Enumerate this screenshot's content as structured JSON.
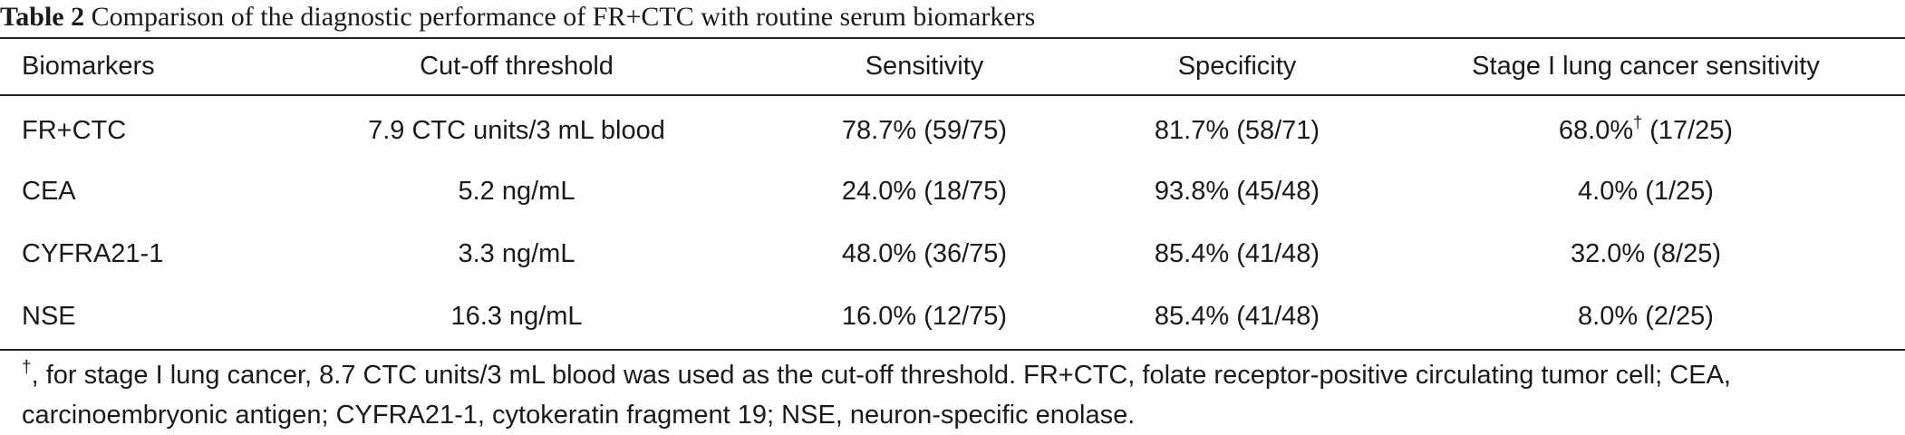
{
  "caption": {
    "label": "Table 2",
    "text": " Comparison of the diagnostic performance of FR+CTC with routine serum biomarkers"
  },
  "table": {
    "headers": [
      "Biomarkers",
      "Cut-off threshold",
      "Sensitivity",
      "Specificity",
      "Stage I lung cancer sensitivity"
    ],
    "rows": [
      {
        "biomarker": "FR+CTC",
        "cutoff": "7.9 CTC units/3 mL blood",
        "sensitivity": "78.7% (59/75)",
        "specificity": "81.7% (58/71)",
        "stage1_value": "68.0%",
        "stage1_mark": "†",
        "stage1_count": " (17/25)"
      },
      {
        "biomarker": "CEA",
        "cutoff": "5.2 ng/mL",
        "sensitivity": "24.0% (18/75)",
        "specificity": "93.8% (45/48)",
        "stage1_value": "4.0% (1/25)"
      },
      {
        "biomarker": "CYFRA21-1",
        "cutoff": "3.3 ng/mL",
        "sensitivity": "48.0% (36/75)",
        "specificity": "85.4% (41/48)",
        "stage1_value": "32.0% (8/25)"
      },
      {
        "biomarker": "NSE",
        "cutoff": "16.3 ng/mL",
        "sensitivity": "16.0% (12/75)",
        "specificity": "85.4% (41/48)",
        "stage1_value": "8.0% (2/25)"
      }
    ]
  },
  "footnote": {
    "mark": "†",
    "text": ", for stage I lung cancer, 8.7 CTC units/3 mL blood was used as the cut-off threshold. FR+CTC, folate receptor-positive circulating tumor cell; CEA, carcinoembryonic antigen; CYFRA21-1, cytokeratin fragment 19; NSE, neuron-specific enolase."
  }
}
